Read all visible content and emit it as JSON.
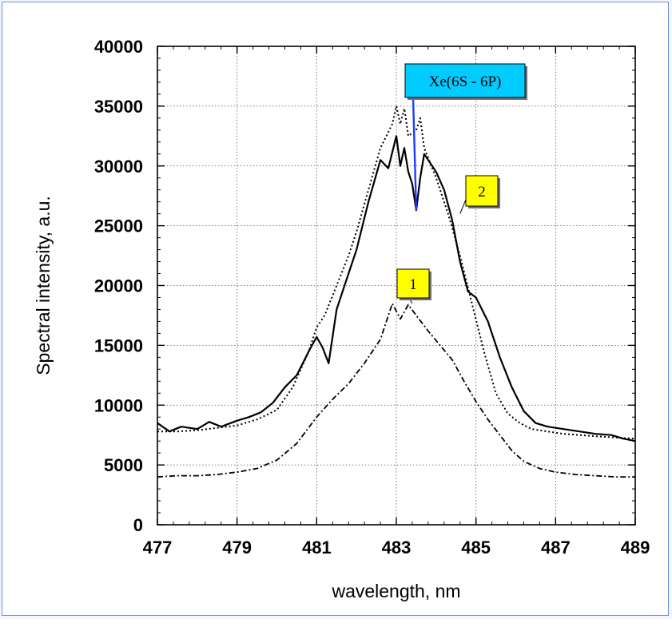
{
  "chart_data": {
    "type": "line",
    "title": "",
    "xlabel": "wavelength, nm",
    "ylabel": "Spectral intensity, a.u.",
    "xlim": [
      477,
      489
    ],
    "ylim": [
      0,
      40000
    ],
    "xticks": [
      477,
      479,
      481,
      483,
      485,
      487,
      489
    ],
    "yticks": [
      0,
      5000,
      10000,
      15000,
      20000,
      25000,
      30000,
      35000,
      40000
    ],
    "grid": true,
    "series": [
      {
        "style": "solid",
        "x": [
          477.0,
          477.3,
          477.6,
          478.0,
          478.3,
          478.6,
          479.0,
          479.3,
          479.6,
          479.9,
          480.2,
          480.5,
          480.8,
          481.0,
          481.15,
          481.3,
          481.5,
          481.7,
          482.0,
          482.3,
          482.6,
          482.8,
          483.0,
          483.1,
          483.2,
          483.3,
          483.4,
          483.5,
          483.6,
          483.7,
          483.8,
          484.0,
          484.2,
          484.4,
          484.6,
          484.8,
          485.0,
          485.3,
          485.6,
          485.9,
          486.2,
          486.5,
          486.8,
          487.2,
          487.6,
          488.0,
          488.4,
          488.7,
          489.0
        ],
        "y": [
          8500,
          7800,
          8200,
          8000,
          8600,
          8200,
          8700,
          9000,
          9400,
          10200,
          11500,
          12500,
          14500,
          15700,
          14800,
          13500,
          18000,
          20000,
          23000,
          27000,
          30500,
          29800,
          32500,
          30000,
          31500,
          29500,
          28500,
          26300,
          29000,
          31000,
          30500,
          29500,
          28000,
          25500,
          22000,
          19500,
          19000,
          17000,
          14000,
          11500,
          9500,
          8500,
          8200,
          8000,
          7800,
          7600,
          7500,
          7200,
          7000
        ]
      },
      {
        "style": "dotted",
        "x": [
          477.0,
          477.5,
          478.0,
          478.5,
          479.0,
          479.5,
          480.0,
          480.4,
          480.8,
          481.0,
          481.2,
          481.5,
          481.8,
          482.0,
          482.3,
          482.6,
          482.9,
          483.0,
          483.1,
          483.2,
          483.3,
          483.5,
          483.6,
          483.7,
          484.0,
          484.3,
          484.6,
          484.9,
          485.2,
          485.5,
          485.8,
          486.1,
          486.4,
          486.8,
          487.2,
          487.6,
          488.0,
          488.5,
          489.0
        ],
        "y": [
          7800,
          7800,
          7900,
          8100,
          8300,
          8800,
          9600,
          11500,
          14500,
          16500,
          17500,
          20000,
          22500,
          24500,
          28000,
          31500,
          33500,
          35000,
          33500,
          34800,
          32500,
          33000,
          34000,
          31500,
          29000,
          26000,
          22500,
          18500,
          14500,
          11000,
          9300,
          8500,
          8000,
          7800,
          7600,
          7500,
          7400,
          7300,
          7200
        ]
      },
      {
        "style": "dash-dot",
        "x": [
          477.0,
          477.5,
          478.0,
          478.5,
          479.0,
          479.5,
          480.0,
          480.5,
          481.0,
          481.4,
          481.8,
          482.2,
          482.6,
          482.9,
          483.1,
          483.3,
          483.5,
          483.8,
          484.1,
          484.4,
          484.7,
          485.0,
          485.3,
          485.6,
          485.9,
          486.2,
          486.6,
          487.0,
          487.5,
          488.0,
          488.5,
          489.0
        ],
        "y": [
          4000,
          4100,
          4100,
          4200,
          4400,
          4700,
          5400,
          6800,
          9000,
          10500,
          11800,
          13500,
          15500,
          18500,
          17200,
          18400,
          17500,
          16200,
          15000,
          13800,
          12000,
          10300,
          8800,
          7500,
          6200,
          5300,
          4700,
          4400,
          4200,
          4100,
          4000,
          4000
        ]
      }
    ],
    "annotations": [
      {
        "text": "Xe(6S - 6P)",
        "target": [
          483.5,
          26300
        ],
        "box_color": "#00ccff",
        "line_color": "#1c3cff"
      },
      {
        "text": "2",
        "target": [
          484.6,
          26000
        ],
        "box_color": "#ffff00"
      },
      {
        "text": "1",
        "target": [
          483.4,
          18500
        ],
        "box_color": "#ffff00"
      }
    ]
  }
}
